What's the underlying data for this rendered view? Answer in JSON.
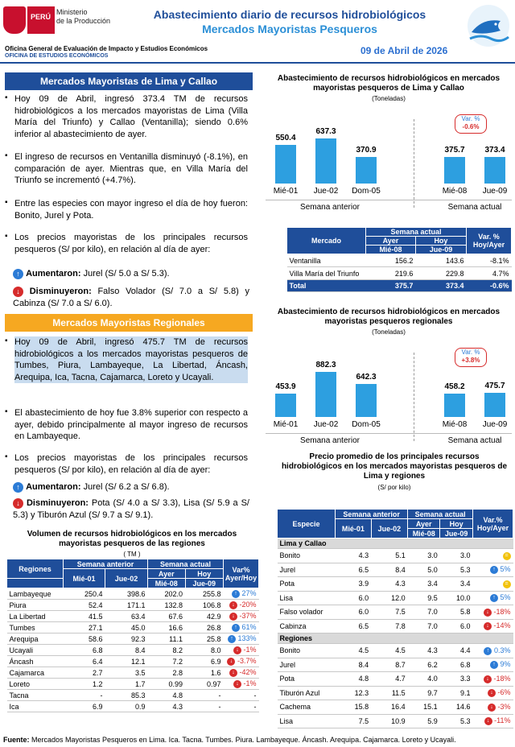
{
  "header": {
    "title1": "Abastecimiento diario de recursos hidrobiológicos",
    "title2": "Mercados Mayoristas Pesqueros",
    "peru": "PERÚ",
    "ministry_line1": "Ministerio",
    "ministry_line2": "de la Producción",
    "office1": "Oficina General de Evaluación de Impacto y Estudios Económicos",
    "office2": "OFICINA DE ESTUDIOS ECONÓMICOS",
    "date": "09 de Abril de 2026"
  },
  "lima": {
    "banner": "Mercados Mayoristas de Lima y Callao",
    "p1": "Hoy 09 de Abril, ingresó 373.4 TM de recursos hidrobiológicos a los mercados mayoristas de Lima (Villa María del Triunfo) y Callao (Ventanilla); siendo 0.6% inferior al abastecimiento de ayer.",
    "p2": "El ingreso de recursos en Ventanilla disminuyó (-8.1%), en comparación de ayer. Mientras que, en Villa María del Triunfo se incrementó (+4.7%).",
    "p3": "Entre las especies con mayor ingreso el día de hoy fueron: Bonito, Jurel y Pota.",
    "p4": "Los precios mayoristas de los principales recursos pesqueros (S/ por kilo), en relación al día de ayer:",
    "up_label": "Aumentaron:",
    "up_text": "Jurel (S/ 5.0 a S/ 5.3).",
    "down_label": "Disminuyeron:",
    "down_text": "Falso Volador (S/ 7.0 a S/ 5.8) y Cabinza (S/ 7.0 a S/ 6.0)."
  },
  "reg": {
    "banner": "Mercados Mayoristas Regionales",
    "p1": "Hoy 09 de Abril, ingresó 475.7 TM de recursos hidrobiológicos a los mercados mayoristas pesqueros de Tumbes, Piura, Lambayeque, La Libertad, Áncash, Arequipa, Ica, Tacna, Cajamarca, Loreto y Ucayali.",
    "p2": "El abastecimiento de hoy fue 3.8% superior con respecto a ayer, debido principalmente al mayor ingreso de recursos en Lambayeque.",
    "p3": "Los precios mayoristas de los principales recursos pesqueros (S/ por kilo), en relación al día de ayer:",
    "up_label": "Aumentaron:",
    "up_text": "Jurel (S/ 6.2 a S/ 6.8).",
    "down_label": "Disminuyeron:",
    "down_text": "Pota (S/ 4.0 a S/ 3.3), Lisa (S/ 5.9 a S/ 5.3) y Tiburón Azul (S/ 9.7 a S/ 9.1)."
  },
  "chart_data": [
    {
      "type": "bar",
      "title": "Abastecimiento de recursos hidrobiológicos en mercados mayoristas pesqueros de Lima y Callao",
      "subtitle": "(Toneladas)",
      "categories": [
        "Mié-01",
        "Jue-02",
        "Dom-05",
        "Mié-08",
        "Jue-09"
      ],
      "values": [
        550.4,
        637.3,
        370.9,
        375.7,
        373.4
      ],
      "groups": [
        "Semana anterior",
        "Semana actual"
      ],
      "var_label": "Var. %",
      "var_value": "-0.6%"
    },
    {
      "type": "bar",
      "title": "Abastecimiento de recursos hidrobiológicos en mercados mayoristas pesqueros regionales",
      "subtitle": "(Toneladas)",
      "categories": [
        "Mié-01",
        "Jue-02",
        "Dom-05",
        "Mié-08",
        "Jue-09"
      ],
      "values": [
        453.9,
        882.3,
        642.3,
        458.2,
        475.7
      ],
      "groups": [
        "Semana anterior",
        "Semana actual"
      ],
      "var_label": "Var. %",
      "var_value": "+3.8%"
    }
  ],
  "t1": {
    "h_mercado": "Mercado",
    "h_semana": "Semana actual",
    "h_ayer": "Ayer",
    "h_hoy": "Hoy",
    "h_d1": "Mié-08",
    "h_d2": "Jue-09",
    "h_var": "Var. % Hoy/Ayer",
    "rows": [
      [
        "Ventanilla",
        "156.2",
        "143.6",
        "-8.1%"
      ],
      [
        "Villa María del Triunfo",
        "219.6",
        "229.8",
        "4.7%"
      ]
    ],
    "total": [
      "Total",
      "375.7",
      "373.4",
      "-0.6%"
    ]
  },
  "t2": {
    "title": "Volumen de recursos hidrobiológicos en los mercados mayoristas pesqueros de las regiones",
    "unit": "( TM )",
    "h_reg": "Regiones",
    "h_ant": "Semana anterior",
    "h_act": "Semana actual",
    "h_d1": "Mié-01",
    "h_d2": "Jue-02",
    "h_ayer": "Ayer",
    "h_hoy": "Hoy",
    "h_d3": "Mié-08",
    "h_d4": "Jue-09",
    "h_var": "Var% Ayer/Hoy",
    "rows": [
      [
        "Lambayeque",
        "250.4",
        "398.6",
        "202.0",
        "255.8",
        "27%",
        "u"
      ],
      [
        "Piura",
        "52.4",
        "171.1",
        "132.8",
        "106.8",
        "-20%",
        "d"
      ],
      [
        "La Libertad",
        "41.5",
        "63.4",
        "67.6",
        "42.9",
        "-37%",
        "d"
      ],
      [
        "Tumbes",
        "27.1",
        "45.0",
        "16.6",
        "26.8",
        "61%",
        "u"
      ],
      [
        "Arequipa",
        "58.6",
        "92.3",
        "11.1",
        "25.8",
        "133%",
        "u"
      ],
      [
        "Ucayali",
        "6.8",
        "8.4",
        "8.2",
        "8.0",
        "-1%",
        "d"
      ],
      [
        "Áncash",
        "6.4",
        "12.1",
        "7.2",
        "6.9",
        "-3.7%",
        "d"
      ],
      [
        "Cajamarca",
        "2.7",
        "3.5",
        "2.8",
        "1.6",
        "-42%",
        "d"
      ],
      [
        "Loreto",
        "1.2",
        "1.7",
        "0.99",
        "0.97",
        "-1%",
        "d"
      ],
      [
        "Tacna",
        "-",
        "85.3",
        "4.8",
        "-",
        "-",
        "n"
      ],
      [
        "Ica",
        "6.9",
        "0.9",
        "4.3",
        "-",
        "-",
        "n"
      ]
    ]
  },
  "t3": {
    "title": "Precio promedio de los principales recursos hidrobiológicos en los mercados mayoristas pesqueros de Lima y regiones",
    "unit": "(S/ por kilo)",
    "h_esp": "Especie",
    "h_ant": "Semana anterior",
    "h_act": "Semana actual",
    "h_d1": "Mié-01",
    "h_d2": "Jue-02",
    "h_ayer": "Ayer",
    "h_hoy": "Hoy",
    "h_d3": "Mié-08",
    "h_d4": "Jue-09",
    "h_var": "Var.% Hoy/Ayer",
    "sec1": "Lima y Callao",
    "sec2": "Regiones",
    "rows1": [
      [
        "Bonito",
        "4.3",
        "5.1",
        "3.0",
        "3.0",
        "",
        "e"
      ],
      [
        "Jurel",
        "6.5",
        "8.4",
        "5.0",
        "5.3",
        "5%",
        "u"
      ],
      [
        "Pota",
        "3.9",
        "4.3",
        "3.4",
        "3.4",
        "",
        "e"
      ],
      [
        "Lisa",
        "6.0",
        "12.0",
        "9.5",
        "10.0",
        "5%",
        "u"
      ],
      [
        "Falso volador",
        "6.0",
        "7.5",
        "7.0",
        "5.8",
        "-18%",
        "d"
      ],
      [
        "Cabinza",
        "6.5",
        "7.8",
        "7.0",
        "6.0",
        "-14%",
        "d"
      ]
    ],
    "rows2": [
      [
        "Bonito",
        "4.5",
        "4.5",
        "4.3",
        "4.4",
        "0.3%",
        "u"
      ],
      [
        "Jurel",
        "8.4",
        "8.7",
        "6.2",
        "6.8",
        "9%",
        "u"
      ],
      [
        "Pota",
        "4.8",
        "4.7",
        "4.0",
        "3.3",
        "-18%",
        "d"
      ],
      [
        "Tiburón Azul",
        "12.3",
        "11.5",
        "9.7",
        "9.1",
        "-6%",
        "d"
      ],
      [
        "Cachema",
        "15.8",
        "16.4",
        "15.1",
        "14.6",
        "-3%",
        "d"
      ],
      [
        "Lisa",
        "7.5",
        "10.9",
        "5.9",
        "5.3",
        "-11%",
        "d"
      ]
    ]
  },
  "footer": "Fuente: Mercados Mayoristas Pesqueros en Lima. Ica. Tacna. Tumbes. Piura. Lambayeque. Áncash. Arequipa. Cajamarca. Loreto y Ucayali."
}
